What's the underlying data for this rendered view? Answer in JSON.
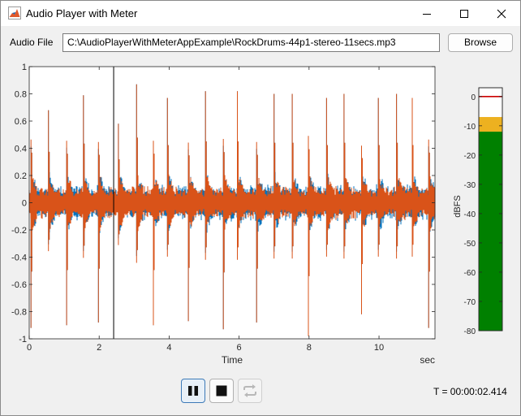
{
  "window": {
    "title": "Audio Player with Meter"
  },
  "file": {
    "label": "Audio File",
    "path": "C:\\AudioPlayerWithMeterAppExample\\RockDrums-44p1-stereo-11secs.mp3",
    "browse_label": "Browse"
  },
  "controls": {
    "time_display": "T = 00:00:02.414"
  },
  "icons": [
    "app-icon",
    "minimize-icon",
    "maximize-icon",
    "close-icon",
    "pause-icon",
    "stop-icon",
    "loop-icon"
  ],
  "colors": {
    "channel_left": "#0072bd",
    "channel_right": "#d95319",
    "meter_green": "#008000",
    "meter_yellow": "#edb120",
    "meter_peak": "#cc0000"
  },
  "chart_data": [
    {
      "type": "line",
      "title": "",
      "xlabel": "Time",
      "xunit": "sec",
      "ylabel": "",
      "xlim": [
        0,
        11.6
      ],
      "ylim": [
        -1,
        1
      ],
      "xticks": [
        0,
        2,
        4,
        6,
        8,
        10
      ],
      "yticks": [
        -1,
        -0.8,
        -0.6,
        -0.4,
        -0.2,
        0,
        0.2,
        0.4,
        0.6,
        0.8,
        1
      ],
      "playhead_sec": 2.414,
      "series": [
        {
          "color": "#0072bd",
          "body_amplitude": 0.14,
          "hit_times": [
            0.05,
            0.55,
            1.07,
            1.55,
            1.98,
            2.55,
            3.07,
            3.55,
            3.95,
            4.55,
            5.04,
            5.55,
            5.95,
            6.5,
            7.0,
            7.52,
            7.98,
            8.5,
            9.0,
            9.5,
            9.98,
            10.5,
            10.95,
            11.42
          ],
          "hit_peaks": [
            -0.92,
            0.68,
            -0.9,
            0.79,
            -0.88,
            0.58,
            0.87,
            -0.9,
            0.77,
            -0.87,
            0.82,
            -0.93,
            0.82,
            -0.88,
            0.8,
            0.8,
            -0.98,
            0.77,
            0.8,
            -0.82,
            0.77,
            0.8,
            0.77,
            -0.92
          ]
        },
        {
          "color": "#d95319",
          "body_amplitude": 0.13,
          "hit_times": [
            0.05,
            0.55,
            1.07,
            1.55,
            1.98,
            2.55,
            3.07,
            3.55,
            3.95,
            4.55,
            5.04,
            5.55,
            5.95,
            6.5,
            7.0,
            7.52,
            7.98,
            8.5,
            9.0,
            9.5,
            9.98,
            10.5,
            10.95,
            11.42
          ],
          "hit_peaks": [
            -0.92,
            0.68,
            -0.9,
            0.79,
            -0.88,
            0.58,
            0.87,
            -0.9,
            0.77,
            -0.87,
            0.82,
            -0.93,
            0.82,
            -0.88,
            0.8,
            0.8,
            -0.98,
            0.77,
            0.8,
            -0.82,
            0.77,
            0.8,
            0.77,
            -0.92
          ]
        }
      ]
    },
    {
      "type": "bar",
      "title": "",
      "ylabel": "dBFS",
      "ylim": [
        -80,
        3
      ],
      "yticks": [
        0,
        -10,
        -20,
        -30,
        -40,
        -50,
        -60,
        -70,
        -80
      ],
      "rms_dbfs": -12,
      "peak_dbfs": -7,
      "peak_hold_dbfs": 0
    }
  ]
}
